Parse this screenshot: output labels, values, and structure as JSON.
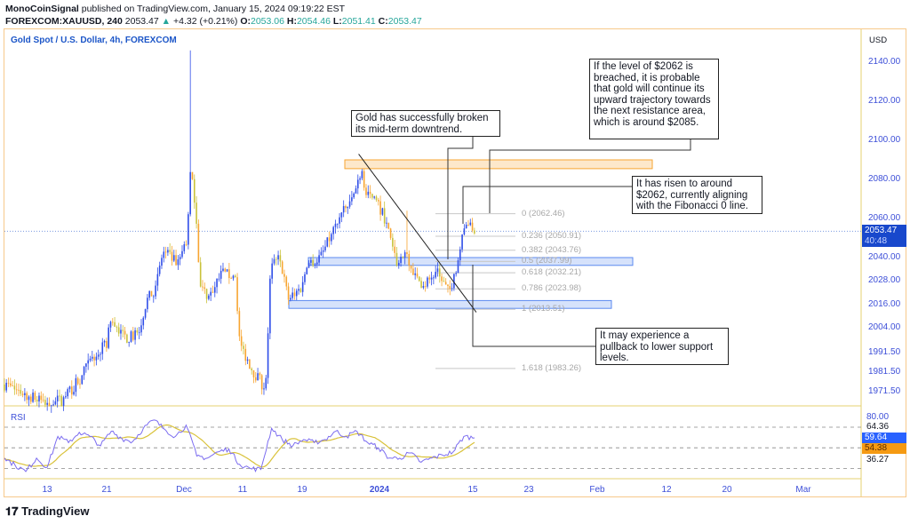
{
  "header": {
    "publisher": "MonoCoinSignal",
    "published_text": "published on TradingView.com, January 15, 2024 09:19:22 EST",
    "symbol": "FOREXCOM:XAUUSD, 240",
    "last": "2053.47",
    "change_arrow": "▲",
    "change": "+4.32 (+0.21%)",
    "o_label": "O:",
    "o": "2053.06",
    "h_label": "H:",
    "h": "2054.46",
    "l_label": "L:",
    "l": "2051.41",
    "c_label": "C:",
    "c": "2053.47"
  },
  "chart_title": "Gold Spot / U.S. Dollar, 4h, FOREXCOM",
  "currency": "USD",
  "colors": {
    "up": "#2f4ee8",
    "down": "#f7a531",
    "accent": "#1c56c8",
    "last_price_tag": "#1848cc",
    "rsi": "#7b6cf0",
    "rsi_ma": "#d9c23a",
    "resistance": "#f7a531",
    "support": "#5b8af0"
  },
  "chart_data": {
    "type": "candlestick",
    "title": "Gold Spot / U.S. Dollar, 4h, FOREXCOM",
    "yaxis_ticks": [
      "2140.00",
      "2120.00",
      "2100.00",
      "2080.00",
      "2060.00",
      "2040.00",
      "2028.00",
      "2016.00",
      "2004.00",
      "1991.50",
      "1981.50",
      "1971.50"
    ],
    "xaxis_ticks": [
      "13",
      "21",
      "Dec",
      "11",
      "19",
      "2024",
      "15",
      "23",
      "Feb",
      "12",
      "20",
      "Mar"
    ],
    "ylim": [
      1966,
      2150
    ],
    "last_price": "2053.47",
    "countdown": "40:48",
    "price_path": [
      {
        "t": "2023-11-08T05",
        "p": 1975
      },
      {
        "t": "2023-11-09T21",
        "p": 1972
      },
      {
        "t": "2023-11-13T00",
        "p": 1966
      },
      {
        "t": "2023-11-15T11",
        "p": 1967
      },
      {
        "t": "2023-11-17T16",
        "p": 1978
      },
      {
        "t": "2023-11-18T19",
        "p": 1986
      },
      {
        "t": "2023-11-21T00",
        "p": 1996
      },
      {
        "t": "2023-11-21T13",
        "p": 2008
      },
      {
        "t": "2023-11-23T07",
        "p": 1999
      },
      {
        "t": "2023-11-25T00",
        "p": 2000
      },
      {
        "t": "2023-11-26T04",
        "p": 2018
      },
      {
        "t": "2023-11-27T08",
        "p": 2024
      },
      {
        "t": "2023-11-28T06",
        "p": 2043
      },
      {
        "t": "2023-11-30T05",
        "p": 2037
      },
      {
        "t": "2023-12-01T14",
        "p": 2050
      },
      {
        "t": "2023-12-01T22",
        "p": 2072
      },
      {
        "t": "2023-12-02T01",
        "p": 2082,
        "high": 2146
      },
      {
        "t": "2023-12-02T16",
        "p": 2075
      },
      {
        "t": "2023-12-03T06",
        "p": 2055
      },
      {
        "t": "2023-12-03T17",
        "p": 2025
      },
      {
        "t": "2023-12-05T06",
        "p": 2020
      },
      {
        "t": "2023-12-07T12",
        "p": 2032
      },
      {
        "t": "2023-12-09T19",
        "p": 2030
      },
      {
        "t": "2023-12-10T12",
        "p": 1996
      },
      {
        "t": "2023-12-12T09",
        "p": 1982
      },
      {
        "t": "2023-12-13T20",
        "p": 1974
      },
      {
        "t": "2023-12-14T04",
        "p": 1980
      },
      {
        "t": "2023-12-14T18",
        "p": 2034
      },
      {
        "t": "2023-12-15T23",
        "p": 2040
      },
      {
        "t": "2023-12-17T03",
        "p": 2019
      },
      {
        "t": "2023-12-19T00",
        "p": 2025
      },
      {
        "t": "2023-12-19T18",
        "p": 2037
      },
      {
        "t": "2023-12-22T02",
        "p": 2040
      },
      {
        "t": "2023-12-24T10",
        "p": 2055
      },
      {
        "t": "2023-12-25T04",
        "p": 2060
      },
      {
        "t": "2023-12-27T12",
        "p": 2070
      },
      {
        "t": "2023-12-29T00",
        "p": 2086
      },
      {
        "t": "2023-12-29T18",
        "p": 2072
      },
      {
        "t": "2023-12-31T17",
        "p": 2068
      },
      {
        "t": "2024-01-02T01",
        "p": 2058
      },
      {
        "t": "2024-01-03T06",
        "p": 2040
      },
      {
        "t": "2024-01-03T22",
        "p": 2036
      },
      {
        "t": "2024-01-05T02",
        "p": 2042,
        "high": 2064
      },
      {
        "t": "2024-01-06T10",
        "p": 2030
      },
      {
        "t": "2024-01-07T16",
        "p": 2026
      },
      {
        "t": "2024-01-09T16",
        "p": 2032
      },
      {
        "t": "2024-01-11T10",
        "p": 2022
      },
      {
        "t": "2024-01-12T08",
        "p": 2032
      },
      {
        "t": "2024-01-13T10",
        "p": 2050
      },
      {
        "t": "2024-01-14T02",
        "p": 2060
      },
      {
        "t": "2024-01-14T17",
        "p": 2055
      },
      {
        "t": "2024-01-15T06",
        "p": 2053.47
      }
    ],
    "resistance_zone": {
      "from": 2085.5,
      "to": 2090
    },
    "support_zones": [
      {
        "from": 2036,
        "to": 2040
      },
      {
        "from": 2014,
        "to": 2018
      }
    ],
    "trendline": [
      {
        "t": "2023-12-28T12",
        "p": 2093
      },
      {
        "t": "2024-01-15T12",
        "p": 2012
      }
    ],
    "fibonacci": [
      {
        "label": "0 (2062.46)",
        "price": 2062.46
      },
      {
        "label": "0.236 (2050.91)",
        "price": 2050.91
      },
      {
        "label": "0.382 (2043.76)",
        "price": 2043.76
      },
      {
        "label": "0.5 (2037.99)",
        "price": 2037.99
      },
      {
        "label": "0.618 (2032.21)",
        "price": 2032.21
      },
      {
        "label": "0.786 (2023.98)",
        "price": 2023.98
      },
      {
        "label": "1 (2013.51)",
        "price": 2013.51
      },
      {
        "label": "1.618 (1983.26)",
        "price": 1983.26
      }
    ],
    "rsi": {
      "label": "RSI",
      "levels": [
        70,
        50,
        30
      ],
      "axis_labels": [
        "80.00",
        "64.36",
        "36.27"
      ],
      "value": "59.64",
      "ma_value": "54.38",
      "values": [
        40,
        33,
        27,
        40,
        31,
        61,
        55,
        65,
        61,
        52,
        66,
        59,
        56,
        69,
        77,
        68,
        61,
        72,
        42,
        40,
        46,
        49,
        34,
        30,
        29,
        69,
        58,
        52,
        58,
        55,
        58,
        66,
        61,
        66,
        55,
        50,
        40,
        40,
        45,
        36,
        40,
        43,
        46,
        61,
        59.64
      ]
    }
  },
  "annotations": {
    "breakout": "Gold has successfully broken its mid-term downtrend.",
    "target": "If the level of $2062 is breached, it is probable that gold will continue its upward trajectory towards the next resistance area, which is around $2085.",
    "current": "It has risen to around $2062, currently aligning with the Fibonacci 0 line.",
    "pullback": "It may experience a pullback to lower support levels."
  },
  "footer": {
    "logo_text": "TradingView"
  }
}
